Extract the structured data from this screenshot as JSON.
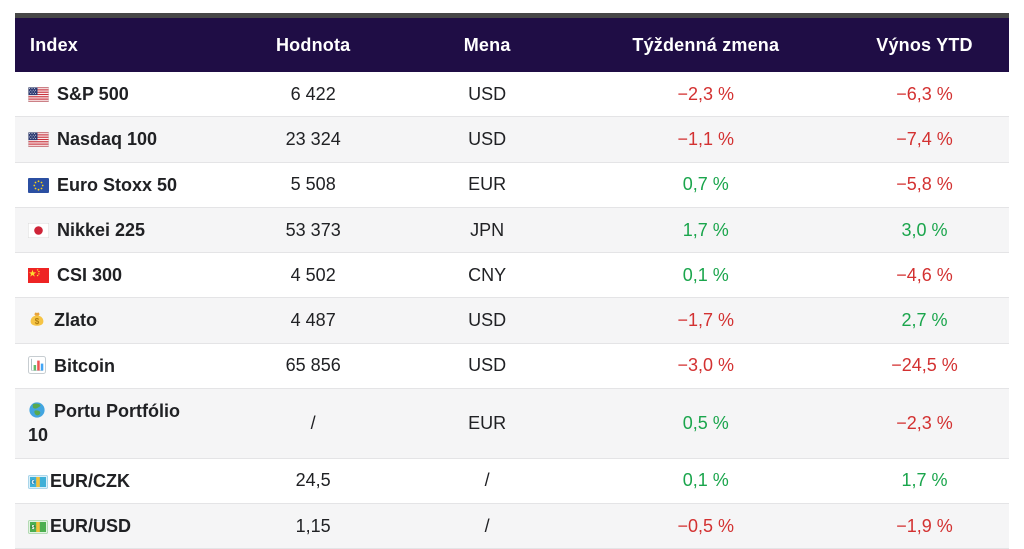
{
  "chart_data": {
    "type": "table",
    "title": "",
    "columns": [
      "Index",
      "Hodnota",
      "Mena",
      "Týždenná zmena",
      "Výnos YTD"
    ],
    "rows": [
      {
        "icon": "flag-us",
        "index": "S&P 500",
        "value": "6 422",
        "currency": "USD",
        "weekly": "−2,3 %",
        "ytd": "−6,3 %"
      },
      {
        "icon": "flag-us",
        "index": "Nasdaq 100",
        "value": "23 324",
        "currency": "USD",
        "weekly": "−1,1 %",
        "ytd": "−7,4 %"
      },
      {
        "icon": "flag-eu",
        "index": "Euro Stoxx 50",
        "value": "5 508",
        "currency": "EUR",
        "weekly": "0,7 %",
        "ytd": "−5,8 %"
      },
      {
        "icon": "flag-jp",
        "index": "Nikkei 225",
        "value": "53 373",
        "currency": "JPN",
        "weekly": "1,7 %",
        "ytd": "3,0 %"
      },
      {
        "icon": "flag-cn",
        "index": "CSI 300",
        "value": "4 502",
        "currency": "CNY",
        "weekly": "0,1 %",
        "ytd": "−4,6 %"
      },
      {
        "icon": "money-bag",
        "index": "Zlato",
        "value": "4 487",
        "currency": "USD",
        "weekly": "−1,7 %",
        "ytd": "2,7 %"
      },
      {
        "icon": "bar-chart",
        "index": "Bitcoin",
        "value": "65 856",
        "currency": "USD",
        "weekly": "−3,0 %",
        "ytd": "−24,5 %"
      },
      {
        "icon": "globe",
        "index": "Portu Portfólio 10",
        "value": "/",
        "currency": "EUR",
        "weekly": "0,5 %",
        "ytd": "−2,3 %"
      },
      {
        "icon": "banknote-euro",
        "index": "EUR/CZK",
        "value": "24,5",
        "currency": "/",
        "weekly": "0,1 %",
        "ytd": "1,7 %"
      },
      {
        "icon": "banknote-dollar",
        "index": "EUR/USD",
        "value": "1,15",
        "currency": "/",
        "weekly": "−0,5 %",
        "ytd": "−1,9 %"
      }
    ]
  },
  "colors": {
    "header_bg": "#1f0d45",
    "header_text": "#ffffff",
    "accent_bar": "#474747",
    "positive": "#1aa54c",
    "negative": "#d33131",
    "zebra_row": "#f5f5f6",
    "row_divider": "#e4e4e6",
    "body_text": "#202124"
  }
}
